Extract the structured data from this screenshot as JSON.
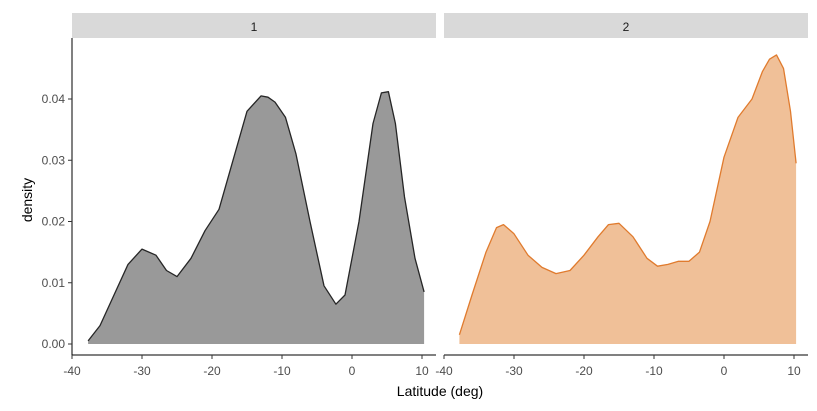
{
  "chart_data": {
    "type": "area",
    "xlabel": "Latitude (deg)",
    "ylabel": "density",
    "xlim": [
      -40,
      12
    ],
    "ylim": [
      0,
      0.049
    ],
    "x_ticks": [
      -40,
      -30,
      -20,
      -10,
      0,
      10
    ],
    "y_ticks": [
      0.0,
      0.01,
      0.02,
      0.03,
      0.04
    ],
    "y_tick_labels": [
      "0.00",
      "0.01",
      "0.02",
      "0.03",
      "0.04"
    ],
    "grid": false,
    "legend": "none",
    "panels": [
      {
        "strip_label": "1",
        "fill_color": "#999999",
        "line_color": "#262626",
        "x": [
          -37.7,
          -36,
          -34,
          -32,
          -30,
          -28,
          -26.5,
          -25,
          -23,
          -21,
          -19,
          -17,
          -15,
          -13,
          -12,
          -11,
          -9.5,
          -8,
          -6,
          -4,
          -2.3,
          -1,
          1,
          3,
          4.2,
          5.2,
          6.2,
          7.5,
          9,
          10.3
        ],
        "y": [
          0.0005,
          0.003,
          0.008,
          0.013,
          0.0155,
          0.0145,
          0.012,
          0.011,
          0.014,
          0.0185,
          0.022,
          0.03,
          0.038,
          0.0405,
          0.0403,
          0.0395,
          0.037,
          0.031,
          0.02,
          0.0095,
          0.0065,
          0.008,
          0.02,
          0.036,
          0.041,
          0.0412,
          0.036,
          0.024,
          0.014,
          0.0085
        ]
      },
      {
        "strip_label": "2",
        "fill_color": "#f0c098",
        "line_color": "#e07b2e",
        "x": [
          -37.8,
          -36,
          -34,
          -32.5,
          -31.5,
          -30,
          -28,
          -26,
          -24,
          -22,
          -20,
          -18,
          -16.5,
          -15,
          -13,
          -11,
          -9.5,
          -8,
          -6.5,
          -5,
          -3.5,
          -2,
          0,
          2,
          4,
          5.5,
          6.5,
          7.5,
          8.5,
          9.5,
          10.3
        ],
        "y": [
          0.0015,
          0.008,
          0.015,
          0.019,
          0.0195,
          0.018,
          0.0145,
          0.0125,
          0.0115,
          0.012,
          0.0145,
          0.0175,
          0.0195,
          0.0197,
          0.0175,
          0.014,
          0.0127,
          0.013,
          0.0135,
          0.0135,
          0.015,
          0.02,
          0.0305,
          0.037,
          0.04,
          0.0445,
          0.0465,
          0.0472,
          0.045,
          0.038,
          0.0295
        ]
      }
    ]
  }
}
